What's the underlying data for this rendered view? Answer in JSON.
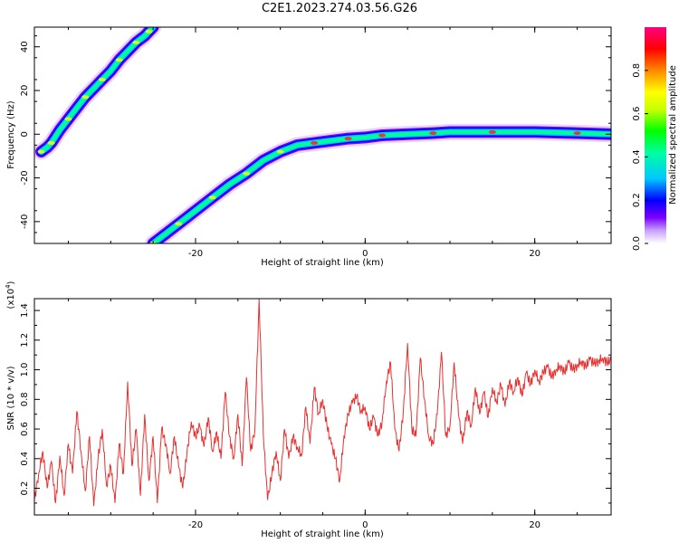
{
  "title": "C2E1.2023.274.03.56.G26",
  "chart_data": [
    {
      "type": "heatmap",
      "xlabel": "Height of straight line (km)",
      "ylabel": "Frequency (Hz)",
      "xlim": [
        -39,
        29
      ],
      "ylim": [
        -50,
        49
      ],
      "x_ticks": [
        -20,
        0,
        20
      ],
      "y_ticks": [
        40,
        20,
        0,
        -20,
        -40
      ],
      "colorbar": {
        "label": "Normalized spectral amplitude",
        "range": [
          0,
          1
        ],
        "ticks": [
          0.0,
          0.2,
          0.4,
          0.6,
          0.8
        ]
      },
      "ridges": [
        {
          "name": "",
          "x": [
            -38.2,
            -37.5,
            -37,
            -36,
            -35,
            -34,
            -33,
            -32,
            -31,
            -30,
            -29,
            -28,
            -27,
            -26,
            -25.5,
            -25
          ],
          "y": [
            -8,
            -6,
            -4,
            2,
            7,
            12,
            17,
            21,
            25,
            29,
            34,
            38,
            42,
            45,
            47,
            49
          ]
        },
        {
          "name": "",
          "x": [
            -25,
            -24,
            -22,
            -20,
            -18,
            -16,
            -14,
            -12,
            -10,
            -8,
            -6,
            -4,
            -2,
            0,
            2,
            5,
            8,
            10,
            15,
            20,
            25,
            29
          ],
          "y": [
            -50,
            -47,
            -41,
            -35,
            -29,
            -23,
            -18,
            -12,
            -8,
            -5,
            -4,
            -3,
            -2,
            -1.5,
            -0.5,
            0,
            0.5,
            1,
            1,
            1,
            0.5,
            0
          ]
        }
      ]
    },
    {
      "type": "line",
      "xlabel": "Height of straight line (km)",
      "ylabel": "SNR (10 * v/v)",
      "y_multiplier": "(x10",
      "y_multiplier_exp": "4",
      "y_multiplier_close": ")",
      "xlim": [
        -39,
        29
      ],
      "ylim": [
        0.02,
        1.48
      ],
      "x_ticks": [
        -20,
        0,
        20
      ],
      "y_ticks": [
        0.2,
        0.4,
        0.6,
        0.8,
        1.0,
        1.2,
        1.4
      ],
      "color": "#e8302f",
      "series": [
        {
          "name": "",
          "x": [
            -39,
            -38.5,
            -38,
            -37.5,
            -37,
            -36.5,
            -36,
            -35.5,
            -35,
            -34.5,
            -34,
            -33.5,
            -33,
            -32.5,
            -32,
            -31.5,
            -31,
            -30.5,
            -30,
            -29.5,
            -29,
            -28.5,
            -28,
            -27.5,
            -27,
            -26.5,
            -26,
            -25.5,
            -25,
            -24.5,
            -24,
            -23.5,
            -23,
            -22.5,
            -22,
            -21.5,
            -21,
            -20.5,
            -20,
            -19.5,
            -19,
            -18.5,
            -18,
            -17.5,
            -17,
            -16.5,
            -16,
            -15.5,
            -15,
            -14.5,
            -14,
            -13.5,
            -13,
            -12.5,
            -12,
            -11.5,
            -11,
            -10.5,
            -10,
            -9.5,
            -9,
            -8.5,
            -8,
            -7.5,
            -7,
            -6.5,
            -6,
            -5.5,
            -5,
            -4.5,
            -4,
            -3.5,
            -3,
            -2.5,
            -2,
            -1.5,
            -1,
            -0.5,
            0,
            0.5,
            1,
            1.5,
            2,
            2.5,
            3,
            3.5,
            4,
            4.5,
            5,
            5.5,
            6,
            6.5,
            7,
            7.5,
            8,
            8.5,
            9,
            9.5,
            10,
            10.5,
            11,
            11.5,
            12,
            12.5,
            13,
            13.5,
            14,
            14.5,
            15,
            15.5,
            16,
            16.5,
            17,
            17.5,
            18,
            18.5,
            19,
            19.5,
            20,
            20.5,
            21,
            21.5,
            22,
            22.5,
            23,
            23.5,
            24,
            24.5,
            25,
            25.5,
            26,
            26.5,
            27,
            27.5,
            28,
            28.5,
            29
          ],
          "y": [
            0.12,
            0.3,
            0.45,
            0.2,
            0.38,
            0.1,
            0.42,
            0.15,
            0.5,
            0.3,
            0.72,
            0.45,
            0.18,
            0.55,
            0.08,
            0.4,
            0.6,
            0.22,
            0.35,
            0.1,
            0.5,
            0.3,
            0.92,
            0.35,
            0.6,
            0.15,
            0.7,
            0.25,
            0.55,
            0.1,
            0.6,
            0.5,
            0.3,
            0.55,
            0.35,
            0.2,
            0.45,
            0.65,
            0.55,
            0.62,
            0.48,
            0.68,
            0.45,
            0.58,
            0.4,
            0.85,
            0.55,
            0.4,
            0.7,
            0.35,
            0.95,
            0.45,
            0.6,
            1.48,
            0.55,
            0.12,
            0.3,
            0.45,
            0.25,
            0.6,
            0.4,
            0.55,
            0.48,
            0.42,
            0.75,
            0.5,
            0.88,
            0.7,
            0.8,
            0.62,
            0.5,
            0.4,
            0.25,
            0.55,
            0.7,
            0.78,
            0.82,
            0.72,
            0.75,
            0.6,
            0.68,
            0.55,
            0.65,
            0.92,
            1.05,
            0.6,
            0.45,
            0.72,
            1.18,
            0.6,
            0.55,
            1.08,
            0.8,
            0.55,
            0.5,
            0.7,
            1.12,
            0.55,
            0.62,
            1.05,
            0.7,
            0.5,
            0.72,
            0.62,
            0.88,
            0.7,
            0.85,
            0.68,
            0.88,
            0.78,
            0.9,
            0.75,
            0.92,
            0.85,
            0.95,
            0.82,
            0.98,
            0.9,
            1.0,
            0.92,
            0.98,
            1.02,
            0.95,
            1.0,
            1.03,
            0.98,
            1.05,
            1.0,
            1.03,
            1.06,
            1.02,
            1.07,
            1.04,
            1.06,
            1.08,
            1.05,
            1.06
          ]
        }
      ]
    }
  ]
}
